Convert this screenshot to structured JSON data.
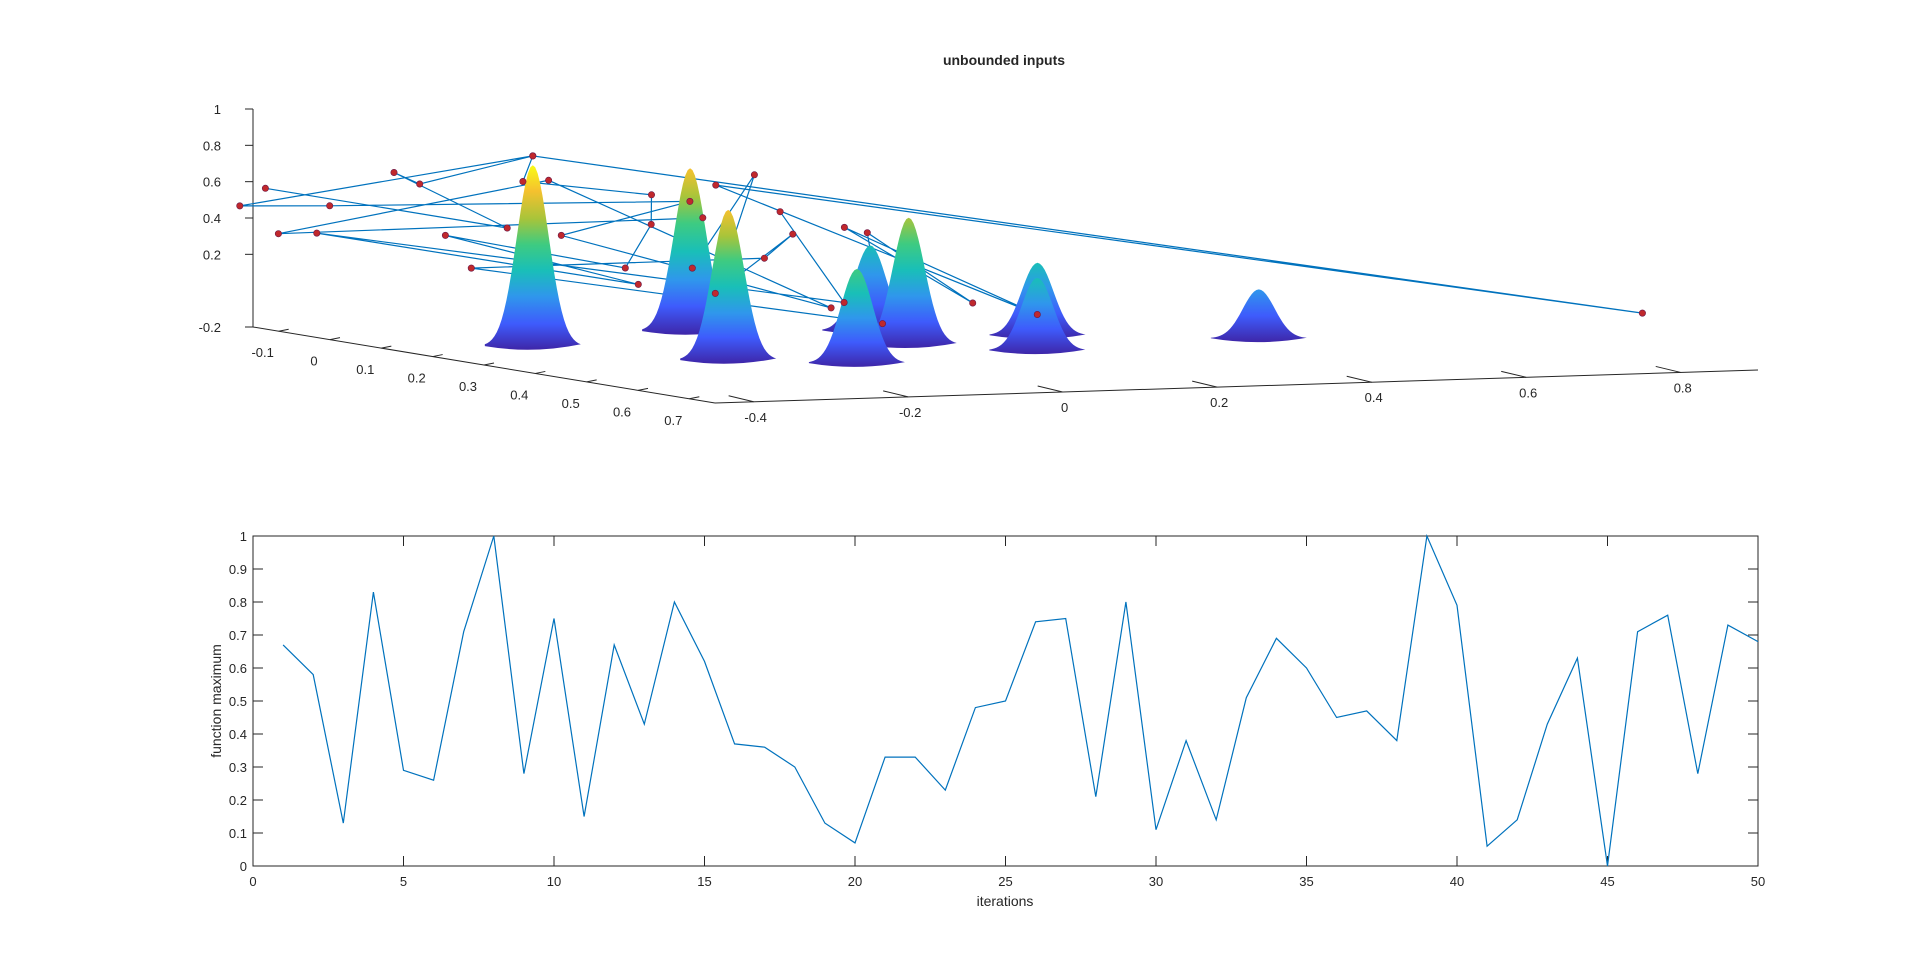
{
  "figure": {
    "background": "#ffffff",
    "axis_color": "#262626",
    "line_color": "#0072bd",
    "marker_color": "#c0282c"
  },
  "chart_data": [
    {
      "type": "surface3d",
      "title": "unbounded inputs",
      "xlabel": "",
      "ylabel": "",
      "zlabel": "",
      "x_ticks": [
        "-0.1",
        "0",
        "0.1",
        "0.2",
        "0.3",
        "0.4",
        "0.5",
        "0.6",
        "0.7"
      ],
      "y_ticks": [
        "-0.4",
        "-0.2",
        "0",
        "0.2",
        "0.4",
        "0.6",
        "0.8"
      ],
      "z_ticks": [
        "-0.2",
        "0.2",
        "0.4",
        "0.6",
        "0.8",
        "1"
      ],
      "xlim": [
        -0.15,
        0.75
      ],
      "ylim": [
        -0.45,
        0.9
      ],
      "zlim": [
        -0.2,
        1
      ],
      "colormap": [
        "#3e26a8",
        "#3e5bfc",
        "#2f97ec",
        "#19bfb8",
        "#3ecb81",
        "#a8c43a",
        "#f5c12e",
        "#f9fb15"
      ],
      "peaks": [
        {
          "x": 0.35,
          "y": -0.42,
          "h": 1.0
        },
        {
          "x": 0.55,
          "y": -0.3,
          "h": 0.83
        },
        {
          "x": 0.25,
          "y": -0.15,
          "h": 0.9
        },
        {
          "x": 0.62,
          "y": -0.18,
          "h": 0.52
        },
        {
          "x": 0.45,
          "y": 0.0,
          "h": 0.7
        },
        {
          "x": 0.3,
          "y": 0.05,
          "h": 0.47
        },
        {
          "x": 0.55,
          "y": 0.1,
          "h": 0.4
        },
        {
          "x": 0.4,
          "y": 0.2,
          "h": 0.4
        },
        {
          "x": 0.5,
          "y": 0.42,
          "h": 0.27
        }
      ],
      "path": [
        {
          "x": 0.1,
          "y": -0.6,
          "z": 0.7
        },
        {
          "x": 0.3,
          "y": -0.42,
          "z": 0.55
        },
        {
          "x": 0.2,
          "y": -0.5,
          "z": 0.82
        },
        {
          "x": 0.25,
          "y": -0.5,
          "z": 0.78
        },
        {
          "x": 0.35,
          "y": -0.42,
          "z": 0.97
        },
        {
          "x": 0.05,
          "y": -0.6,
          "z": 0.58
        },
        {
          "x": 0.15,
          "y": -0.55,
          "z": 0.62
        },
        {
          "x": 0.4,
          "y": -0.25,
          "z": 0.72
        },
        {
          "x": 0.3,
          "y": -0.35,
          "z": 0.5
        },
        {
          "x": 0.6,
          "y": -0.2,
          "z": 0.22
        },
        {
          "x": 0.2,
          "y": -0.3,
          "z": 0.75
        },
        {
          "x": 0.05,
          "y": -0.55,
          "z": 0.42
        },
        {
          "x": 0.35,
          "y": -0.2,
          "z": 0.6
        },
        {
          "x": 0.45,
          "y": -0.28,
          "z": 0.38
        },
        {
          "x": 0.3,
          "y": -0.1,
          "z": 0.8
        },
        {
          "x": 0.6,
          "y": -0.35,
          "z": 0.32
        },
        {
          "x": 0.45,
          "y": -0.15,
          "z": 0.55
        },
        {
          "x": 0.5,
          "y": -0.22,
          "z": 0.45
        },
        {
          "x": 0.2,
          "y": -0.4,
          "z": 0.28
        },
        {
          "x": 0.7,
          "y": -0.2,
          "z": 0.18
        },
        {
          "x": 0.55,
          "y": -0.12,
          "z": 0.6
        },
        {
          "x": 0.65,
          "y": -0.05,
          "z": 0.25
        },
        {
          "x": 0.4,
          "y": -0.05,
          "z": 0.55
        },
        {
          "x": 0.55,
          "y": 0.1,
          "z": 0.12
        },
        {
          "x": 0.3,
          "y": -0.15,
          "z": 0.75
        },
        {
          "x": 0.6,
          "y": 0.85,
          "z": 0.05
        },
        {
          "x": 0.35,
          "y": -0.42,
          "z": 0.97
        },
        {
          "x": 0.15,
          "y": -0.3,
          "z": 0.72
        },
        {
          "x": 0.25,
          "y": -0.2,
          "z": 0.68
        },
        {
          "x": 0.4,
          "y": -0.3,
          "z": 0.6
        },
        {
          "x": 0.5,
          "y": -0.4,
          "z": 0.42
        },
        {
          "x": 0.3,
          "y": -0.5,
          "z": 0.52
        },
        {
          "x": 0.45,
          "y": -0.35,
          "z": 0.3
        },
        {
          "x": 0.2,
          "y": -0.6,
          "z": 0.5
        },
        {
          "x": 0.55,
          "y": -0.15,
          "z": 0.22
        },
        {
          "x": 0.35,
          "y": -0.1,
          "z": 0.62
        }
      ]
    },
    {
      "type": "line",
      "title": "",
      "xlabel": "iterations",
      "ylabel": "function maximum",
      "xlim": [
        0,
        50
      ],
      "ylim": [
        0,
        1
      ],
      "x_ticks": [
        0,
        5,
        10,
        15,
        20,
        25,
        30,
        35,
        40,
        45,
        50
      ],
      "y_ticks": [
        0,
        0.1,
        0.2,
        0.3,
        0.4,
        0.5,
        0.6,
        0.7,
        0.8,
        0.9,
        1
      ],
      "x": [
        1,
        2,
        3,
        4,
        5,
        6,
        7,
        8,
        9,
        10,
        11,
        12,
        13,
        14,
        15,
        16,
        17,
        18,
        19,
        20,
        21,
        22,
        23,
        24,
        25,
        26,
        27,
        28,
        29,
        30,
        31,
        32,
        33,
        34,
        35,
        36,
        37,
        38,
        39,
        40,
        41,
        42,
        43,
        44,
        45,
        46,
        47,
        48,
        49,
        50
      ],
      "series": [
        {
          "values": [
            0.67,
            0.58,
            0.13,
            0.83,
            0.29,
            0.26,
            0.71,
            1.0,
            0.28,
            0.75,
            0.15,
            0.67,
            0.43,
            0.8,
            0.62,
            0.37,
            0.36,
            0.3,
            0.13,
            0.07,
            0.33,
            0.33,
            0.23,
            0.48,
            0.5,
            0.74,
            0.75,
            0.21,
            0.8,
            0.11,
            0.38,
            0.14,
            0.51,
            0.69,
            0.6,
            0.45,
            0.47,
            0.38,
            1.0,
            0.79,
            0.06,
            0.14,
            0.43,
            0.63,
            0.0,
            0.71,
            0.76,
            0.28,
            0.73,
            0.68
          ]
        }
      ]
    }
  ]
}
